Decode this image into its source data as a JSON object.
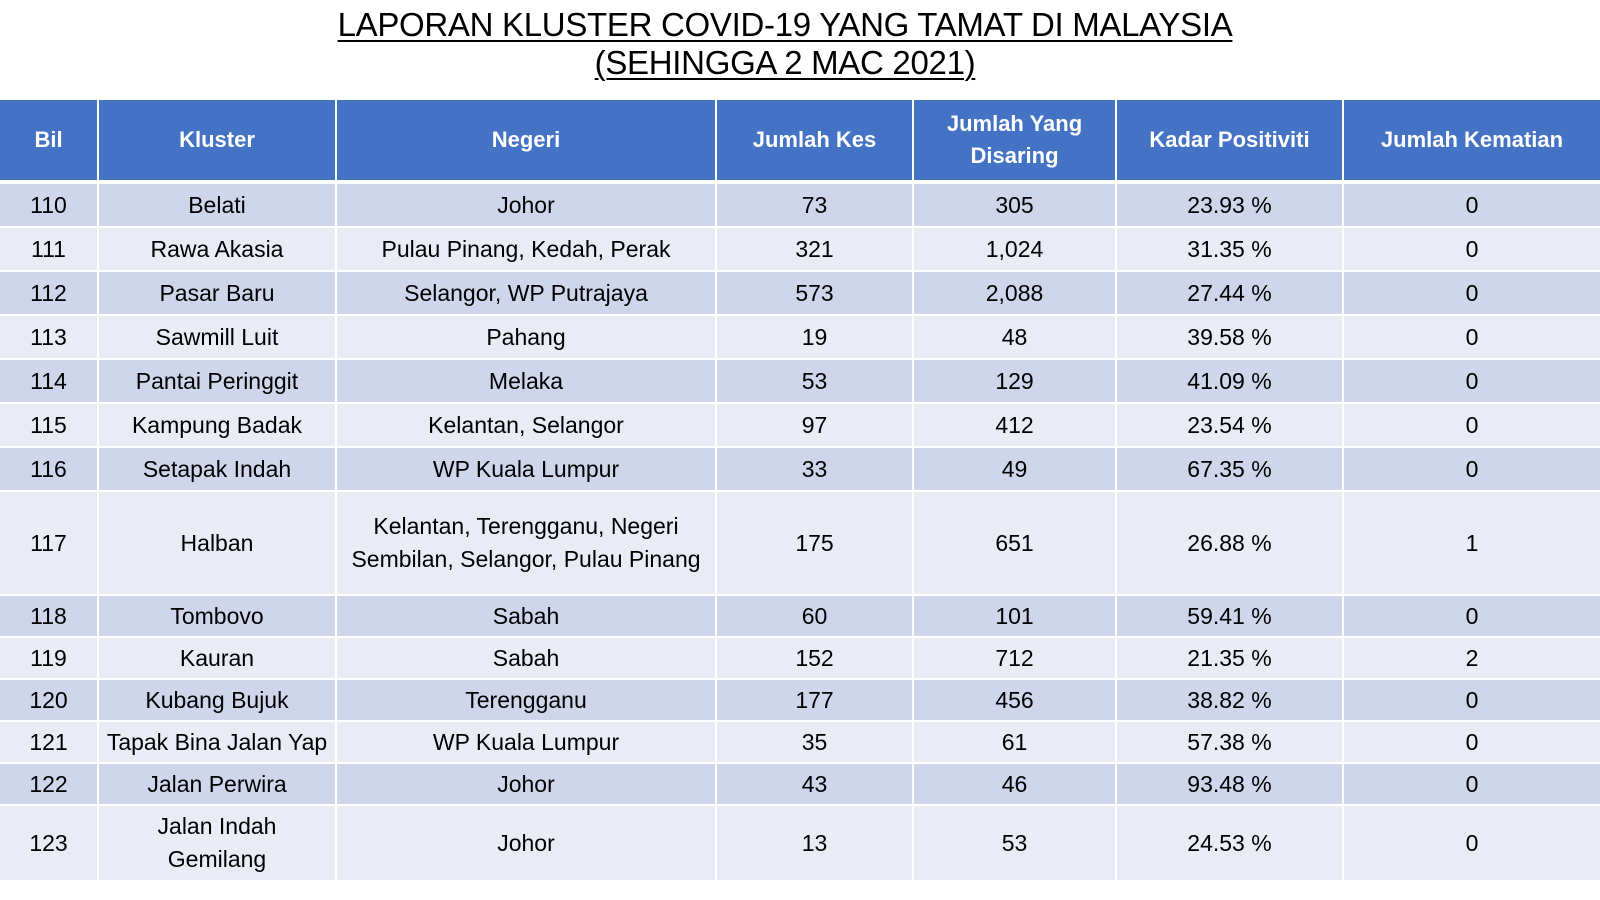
{
  "title": {
    "line1": "LAPORAN KLUSTER COVID-19 YANG TAMAT DI MALAYSIA",
    "line2": "(SEHINGGA  2 MAC 2021)"
  },
  "table": {
    "headers": {
      "bil": "Bil",
      "kluster": "Kluster",
      "negeri": "Negeri",
      "jumlah_kes": "Jumlah Kes",
      "jumlah_disaring": "Jumlah Yang Disaring",
      "kadar_positiviti": "Kadar Positiviti",
      "jumlah_kematian": "Jumlah Kematian"
    },
    "rows": [
      {
        "bil": "110",
        "kluster": "Belati",
        "negeri": "Johor",
        "kes": "73",
        "disaring": "305",
        "positiviti": "23.93 %",
        "kematian": "0"
      },
      {
        "bil": "111",
        "kluster": "Rawa Akasia",
        "negeri": "Pulau Pinang, Kedah, Perak",
        "kes": "321",
        "disaring": "1,024",
        "positiviti": "31.35 %",
        "kematian": "0"
      },
      {
        "bil": "112",
        "kluster": "Pasar Baru",
        "negeri": "Selangor, WP Putrajaya",
        "kes": "573",
        "disaring": "2,088",
        "positiviti": "27.44 %",
        "kematian": "0"
      },
      {
        "bil": "113",
        "kluster": "Sawmill Luit",
        "negeri": "Pahang",
        "kes": "19",
        "disaring": "48",
        "positiviti": "39.58 %",
        "kematian": "0"
      },
      {
        "bil": "114",
        "kluster": "Pantai Peringgit",
        "negeri": "Melaka",
        "kes": "53",
        "disaring": "129",
        "positiviti": "41.09 %",
        "kematian": "0"
      },
      {
        "bil": "115",
        "kluster": "Kampung Badak",
        "negeri": "Kelantan, Selangor",
        "kes": "97",
        "disaring": "412",
        "positiviti": "23.54 %",
        "kematian": "0"
      },
      {
        "bil": "116",
        "kluster": "Setapak Indah",
        "negeri": "WP Kuala Lumpur",
        "kes": "33",
        "disaring": "49",
        "positiviti": "67.35 %",
        "kematian": "0"
      },
      {
        "bil": "117",
        "kluster": "Halban",
        "negeri": "Kelantan, Terengganu, Negeri Sembilan, Selangor, Pulau Pinang",
        "kes": "175",
        "disaring": "651",
        "positiviti": "26.88 %",
        "kematian": "1"
      },
      {
        "bil": "118",
        "kluster": "Tombovo",
        "negeri": "Sabah",
        "kes": "60",
        "disaring": "101",
        "positiviti": "59.41 %",
        "kematian": "0"
      },
      {
        "bil": "119",
        "kluster": "Kauran",
        "negeri": "Sabah",
        "kes": "152",
        "disaring": "712",
        "positiviti": "21.35 %",
        "kematian": "2"
      },
      {
        "bil": "120",
        "kluster": "Kubang Bujuk",
        "negeri": "Terengganu",
        "kes": "177",
        "disaring": "456",
        "positiviti": "38.82 %",
        "kematian": "0"
      },
      {
        "bil": "121",
        "kluster": "Tapak Bina Jalan Yap",
        "negeri": "WP Kuala Lumpur",
        "kes": "35",
        "disaring": "61",
        "positiviti": "57.38 %",
        "kematian": "0"
      },
      {
        "bil": "122",
        "kluster": "Jalan Perwira",
        "negeri": "Johor",
        "kes": "43",
        "disaring": "46",
        "positiviti": "93.48 %",
        "kematian": "0"
      },
      {
        "bil": "123",
        "kluster": "Jalan Indah Gemilang",
        "negeri": "Johor",
        "kes": "13",
        "disaring": "53",
        "positiviti": "24.53 %",
        "kematian": "0"
      }
    ]
  },
  "colors": {
    "header": "#4472c4",
    "row_odd": "#cfd5ea",
    "row_even": "#e9ebf5"
  }
}
